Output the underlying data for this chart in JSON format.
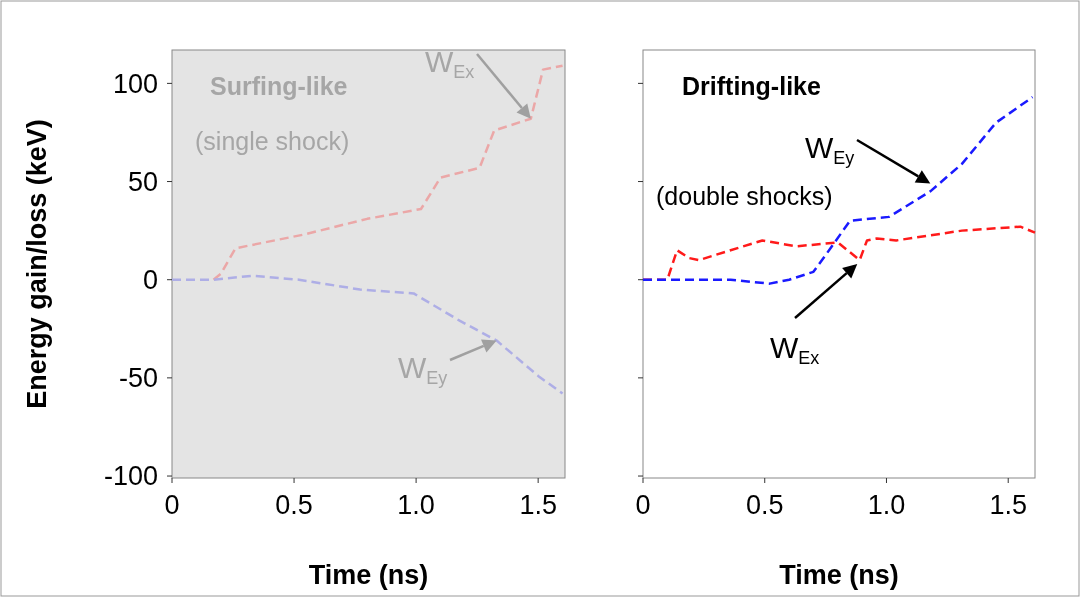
{
  "chart_data": [
    {
      "type": "line",
      "title": "Surfing-like",
      "subtitle": "(single shock)",
      "xlabel": "Time (ns)",
      "ylabel": "Energy gain/loss (keV)",
      "xlim": [
        0,
        1.61
      ],
      "xticks": [
        0,
        {
          "value": 0.5,
          "label": "0.5"
        },
        {
          "value": 1,
          "label": "1.0"
        },
        {
          "value": 1.5,
          "label": "1.5"
        }
      ],
      "ylim": [
        -101,
        117
      ],
      "yticks": [
        -100,
        -50,
        0,
        50,
        100
      ],
      "line_style": "dashed",
      "annotations": [
        {
          "text": "W$_{Ex}$",
          "x": 1.47,
          "y": 82
        },
        {
          "text": "W$_{Ey}$",
          "x": 1.33,
          "y": -31
        }
      ],
      "series": [
        {
          "color": "#eba7a7",
          "x": [
            0.17,
            0.2,
            0.26,
            0.54,
            0.8,
            1.02,
            1.1,
            1.26,
            1.32,
            1.47,
            1.52,
            1.6
          ],
          "values": [
            0,
            3,
            16,
            23,
            31,
            36,
            52,
            57,
            76,
            82,
            107,
            109
          ]
        },
        {
          "color": "#aeaee6",
          "x": [
            0,
            0.17,
            0.33,
            0.52,
            0.77,
            0.99,
            1.18,
            1.33,
            1.5,
            1.6
          ],
          "values": [
            0,
            0,
            2,
            0,
            -5,
            -7,
            -21,
            -31,
            -49,
            -58
          ]
        }
      ]
    },
    {
      "type": "line",
      "title": "Drifting-like",
      "subtitle": "(double shocks)",
      "xlabel": "Time (ns)",
      "xlim": [
        0,
        1.61
      ],
      "xticks": [
        0,
        {
          "value": 0.5,
          "label": "0.5"
        },
        {
          "value": 1,
          "label": "1.0"
        },
        {
          "value": 1.5,
          "label": "1.5"
        }
      ],
      "ylim": [
        -101,
        117
      ],
      "yticks": [
        -100,
        -50,
        0,
        50,
        100
      ],
      "tick_labels": "x",
      "line_style": "dashed",
      "annotations": [
        {
          "text": "W$_{Ey}$",
          "x": 1.18,
          "y": 49
        },
        {
          "text": "W$_{Ex}$",
          "x": 0.88,
          "y": 8
        }
      ],
      "series": [
        {
          "color": "#ff1a1a",
          "x": [
            0,
            0.1,
            0.14,
            0.19,
            0.23,
            0.49,
            0.63,
            0.8,
            0.89,
            0.92,
            0.96,
            1.04,
            1.31,
            1.55,
            1.61
          ],
          "values": [
            0,
            0,
            15,
            11,
            10,
            20,
            17,
            19,
            10,
            20,
            21,
            20,
            25,
            27,
            24
          ]
        },
        {
          "color": "#1a1aff",
          "x": [
            0,
            0.36,
            0.52,
            0.6,
            0.7,
            0.77,
            0.85,
            1.01,
            1.18,
            1.31,
            1.45,
            1.6
          ],
          "values": [
            0,
            0,
            -2,
            0,
            4,
            16,
            30,
            32,
            45,
            59,
            80,
            93
          ]
        }
      ]
    }
  ]
}
